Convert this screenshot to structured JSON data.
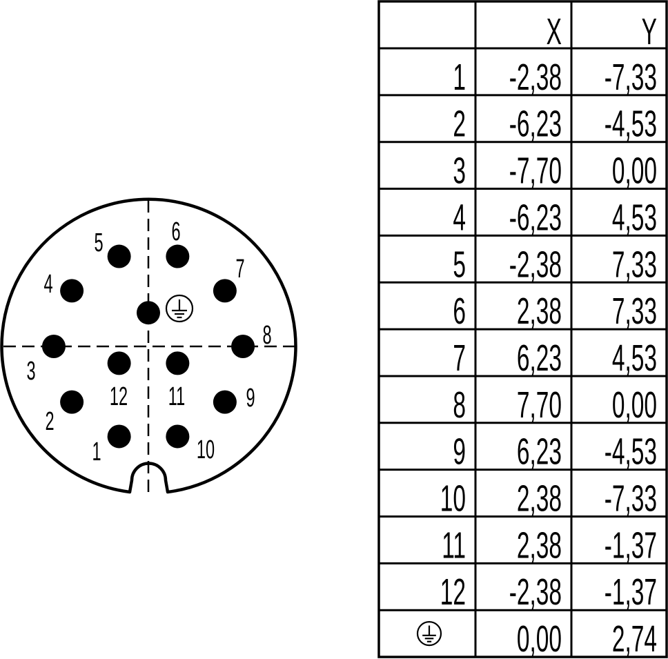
{
  "diagram": {
    "earth_symbol": "protective-earth-icon",
    "line_color": "#000000",
    "background": "#ffffff"
  },
  "table": {
    "headers": [
      "",
      "X",
      "Y"
    ],
    "rows": [
      {
        "pin": "1",
        "x": "-2,38",
        "y": "-7,33"
      },
      {
        "pin": "2",
        "x": "-6,23",
        "y": "-4,53"
      },
      {
        "pin": "3",
        "x": "-7,70",
        "y": "0,00"
      },
      {
        "pin": "4",
        "x": "-6,23",
        "y": "4,53"
      },
      {
        "pin": "5",
        "x": "-2,38",
        "y": "7,33"
      },
      {
        "pin": "6",
        "x": "2,38",
        "y": "7,33"
      },
      {
        "pin": "7",
        "x": "6,23",
        "y": "4,53"
      },
      {
        "pin": "8",
        "x": "7,70",
        "y": "0,00"
      },
      {
        "pin": "9",
        "x": "6,23",
        "y": "-4,53"
      },
      {
        "pin": "10",
        "x": "2,38",
        "y": "-7,33"
      },
      {
        "pin": "11",
        "x": "2,38",
        "y": "-1,37"
      },
      {
        "pin": "12",
        "x": "-2,38",
        "y": "-1,37"
      },
      {
        "pin": "",
        "icon": "protective-earth-icon",
        "x": "0,00",
        "y": "2,74"
      }
    ]
  }
}
